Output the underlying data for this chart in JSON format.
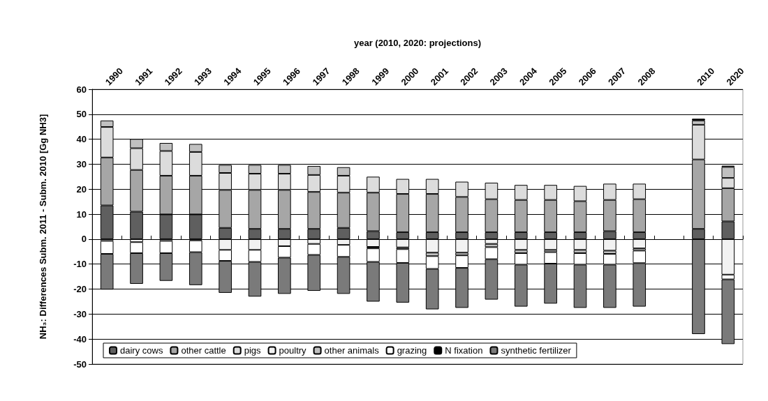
{
  "chart_data": {
    "type": "bar",
    "stacked": true,
    "xlabel": "year (2010, 2020: projections)",
    "ylabel": "NH₃: Differences Subm. 2011 - Subm. 2010 [Gg NH3]",
    "categories": [
      "1990",
      "1991",
      "1992",
      "1993",
      "1994",
      "1995",
      "1996",
      "1997",
      "1998",
      "1999",
      "2000",
      "2001",
      "2002",
      "2003",
      "2004",
      "2005",
      "2006",
      "2007",
      "2008",
      null,
      "2010",
      "2020"
    ],
    "series": [
      {
        "name": "dairy cows",
        "color": "#5f5f5f",
        "values": [
          13.5,
          11.0,
          9.9,
          9.9,
          4.5,
          4.1,
          4.1,
          4.1,
          4.5,
          3.2,
          2.8,
          2.8,
          2.8,
          2.8,
          2.8,
          2.8,
          2.8,
          3.2,
          2.8,
          null,
          4.1,
          7.1
        ]
      },
      {
        "name": "other cattle",
        "color": "#a6a6a6",
        "values": [
          19.2,
          16.7,
          15.5,
          15.5,
          15.2,
          15.6,
          15.6,
          14.8,
          14.1,
          15.4,
          15.3,
          15.3,
          14.1,
          13.2,
          12.9,
          12.9,
          12.4,
          12.5,
          13.2,
          null,
          27.8,
          13.3
        ]
      },
      {
        "name": "pigs",
        "color": "#dcdcdc",
        "values": [
          12.2,
          8.7,
          9.9,
          9.5,
          6.8,
          6.5,
          6.5,
          6.8,
          6.8,
          6.4,
          6.0,
          6.0,
          6.1,
          6.6,
          6.0,
          6.0,
          6.1,
          6.5,
          6.2,
          null,
          13.9,
          4.1
        ]
      },
      {
        "name": "poultry",
        "color": "#f2f2f2",
        "values": [
          -0.7,
          -1.2,
          -0.7,
          -0.5,
          -4.3,
          -4.3,
          -2.8,
          -1.9,
          -2.3,
          -3.1,
          -3.3,
          -5.4,
          -5.4,
          -1.9,
          -4.3,
          -4.3,
          -4.3,
          -4.6,
          -3.7,
          null,
          null,
          -14.2
        ]
      },
      {
        "name": "other animals",
        "color": "#c0c0c0",
        "values": [
          2.6,
          3.7,
          3.2,
          3.2,
          3.2,
          3.5,
          3.5,
          3.6,
          3.4,
          -0.6,
          -0.7,
          -1.4,
          -1.1,
          -1.3,
          -1.3,
          -0.9,
          -1.3,
          -1.3,
          -0.9,
          null,
          1.7,
          4.4
        ]
      },
      {
        "name": "grazing",
        "color": "#ffffff",
        "values": [
          -5.2,
          -4.4,
          -4.9,
          -4.7,
          -4.4,
          -4.8,
          -4.6,
          -4.4,
          -4.8,
          -5.4,
          -5.5,
          -5.1,
          -5.0,
          -4.8,
          -4.6,
          -4.6,
          -4.6,
          -4.3,
          -5.0,
          null,
          null,
          -1.9
        ]
      },
      {
        "name": "N fixation",
        "color": "#000000",
        "values": [
          null,
          null,
          null,
          null,
          null,
          null,
          null,
          null,
          null,
          null,
          null,
          null,
          null,
          null,
          null,
          null,
          null,
          null,
          null,
          null,
          0.7,
          0.5
        ]
      },
      {
        "name": "synthetic fertilizer",
        "color": "#7a7a7a",
        "values": [
          -14.3,
          -12.3,
          -11.1,
          -13.2,
          -12.8,
          -13.9,
          -14.5,
          -14.4,
          -14.8,
          -15.9,
          -15.9,
          -16.2,
          -16.0,
          -16.2,
          -16.8,
          -16.0,
          -17.3,
          -17.3,
          -17.4,
          null,
          -38.0,
          -25.9
        ]
      }
    ],
    "ylim": [
      -50,
      60
    ],
    "yticks": [
      -50,
      -40,
      -30,
      -20,
      -10,
      0,
      10,
      20,
      30,
      40,
      50,
      60
    ],
    "grid": "y",
    "legend": "bottom"
  }
}
